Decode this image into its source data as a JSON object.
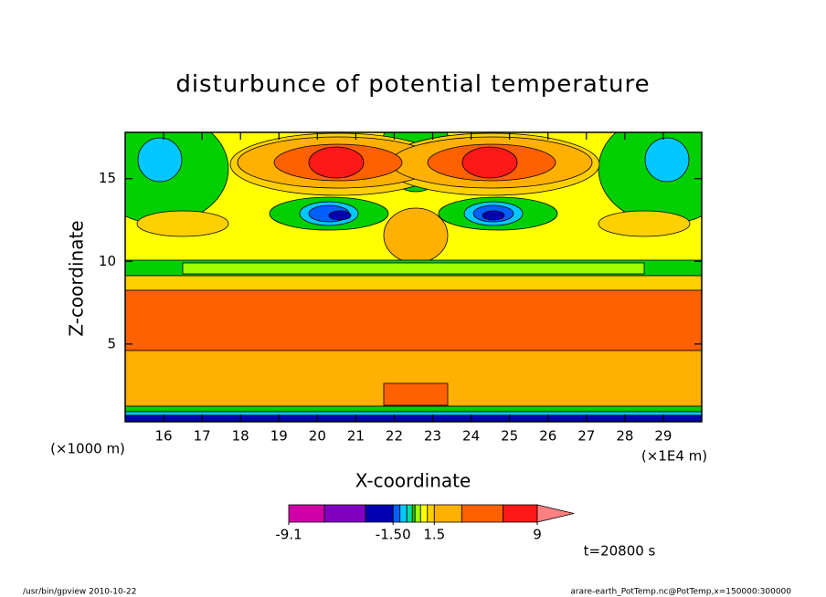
{
  "chart_data": {
    "type": "contour",
    "title": "disturbunce of potential temperature",
    "xlabel": "X-coordinate",
    "ylabel": "Z-coordinate",
    "xunit": "(×1E4 m)",
    "yunit": "(×1000 m)",
    "xlim": [
      15,
      30
    ],
    "xticks": [
      16,
      17,
      18,
      19,
      20,
      21,
      22,
      23,
      24,
      25,
      26,
      27,
      28,
      29
    ],
    "ylim": [
      0.3,
      17.8
    ],
    "yticks": [
      5,
      10,
      15
    ],
    "colorbar_levels": [
      -9.1,
      -6.5,
      -3.5,
      -1.5,
      -1,
      -0.5,
      -0.1,
      0.1,
      0.5,
      1,
      1.5,
      3.5,
      6.5,
      9
    ],
    "colorbar_colors": [
      "#d000a8",
      "#8000c0",
      "#0000b0",
      "#0060ff",
      "#00c8ff",
      "#00e0a0",
      "#00d000",
      "#a0ff00",
      "#ffff00",
      "#ffd000",
      "#ffb000",
      "#ff6000",
      "#ff1818",
      "#ff8080",
      "#ffc0c0"
    ],
    "colorbar_ticks": [
      -9.1,
      {
        "value": -1.5,
        "label": "-1.50"
      },
      1.5,
      9
    ],
    "time_label": "t=20800 s",
    "footer_left": "/usr/bin/gpview  2010-10-22",
    "footer_right": "arare-earth_PotTemp.nc@PotTemp,x=150000:300000"
  }
}
